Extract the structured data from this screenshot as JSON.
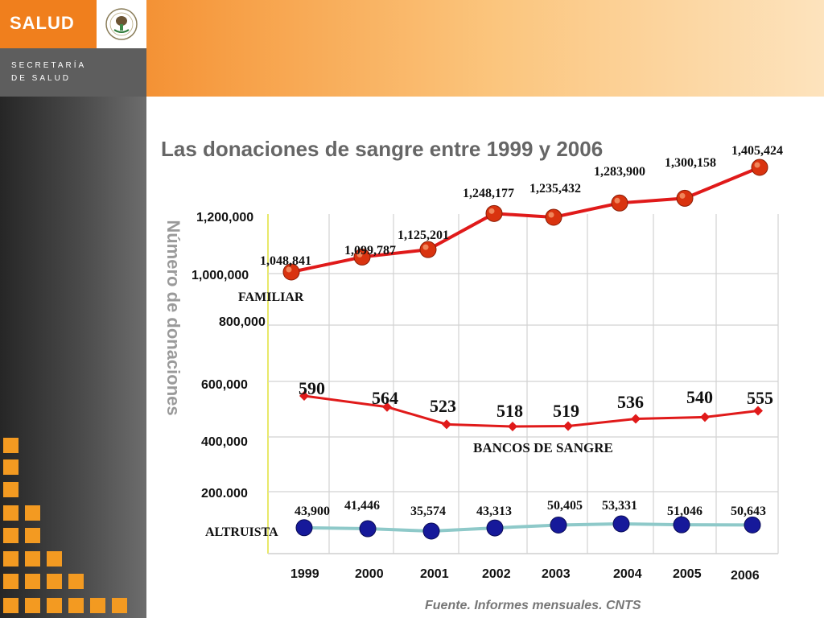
{
  "header": {
    "brand": "SALUD",
    "ministry_line1": "SECRETARÍA",
    "ministry_line2": "DE SALUD",
    "seal_icon": "mexican-coat-of-arms",
    "accent": "#f07f1d"
  },
  "footer": {
    "source": "Fuente. Informes mensuales. CNTS"
  },
  "chart_data": {
    "type": "line",
    "title": "Las donaciones de sangre entre 1999 y 2006",
    "ylabel": "Número de donaciones",
    "xlabel": "",
    "categories": [
      "1999",
      "2000",
      "2001",
      "2002",
      "2003",
      "2004",
      "2005",
      "2006"
    ],
    "y_tick_labels": [
      "1,200,000",
      "1,000,000",
      "800,000",
      "600,000",
      "400,000",
      "200.000"
    ],
    "grid": true,
    "legend": "inline labels",
    "series": [
      {
        "name": "FAMILIAR",
        "color": "#e01a1a",
        "marker": "circle",
        "values": [
          1048841,
          1099787,
          1125201,
          1248177,
          1235432,
          1283900,
          1300158,
          1405424
        ],
        "labels": [
          "1,048,841",
          "1,099,787",
          "1,125,201",
          "1,248,177",
          "1,235,432",
          "1,283,900",
          "1,300,158",
          "1,405,424"
        ]
      },
      {
        "name": "BANCOS DE SANGRE",
        "color": "#e01a1a",
        "marker": "diamond",
        "values": [
          590,
          564,
          523,
          518,
          519,
          536,
          540,
          555
        ],
        "labels": [
          "590",
          "564",
          "523",
          "518",
          "519",
          "536",
          "540",
          "555"
        ]
      },
      {
        "name": "ALTRUISTA",
        "color": "#8ec9c9",
        "marker": "circle",
        "values": [
          43900,
          41446,
          35574,
          43313,
          50405,
          53331,
          51046,
          50643
        ],
        "labels": [
          "43,900",
          "41,446",
          "35,574",
          "43,313",
          "50,405",
          "53,331",
          "51,046",
          "50,643"
        ]
      }
    ]
  }
}
